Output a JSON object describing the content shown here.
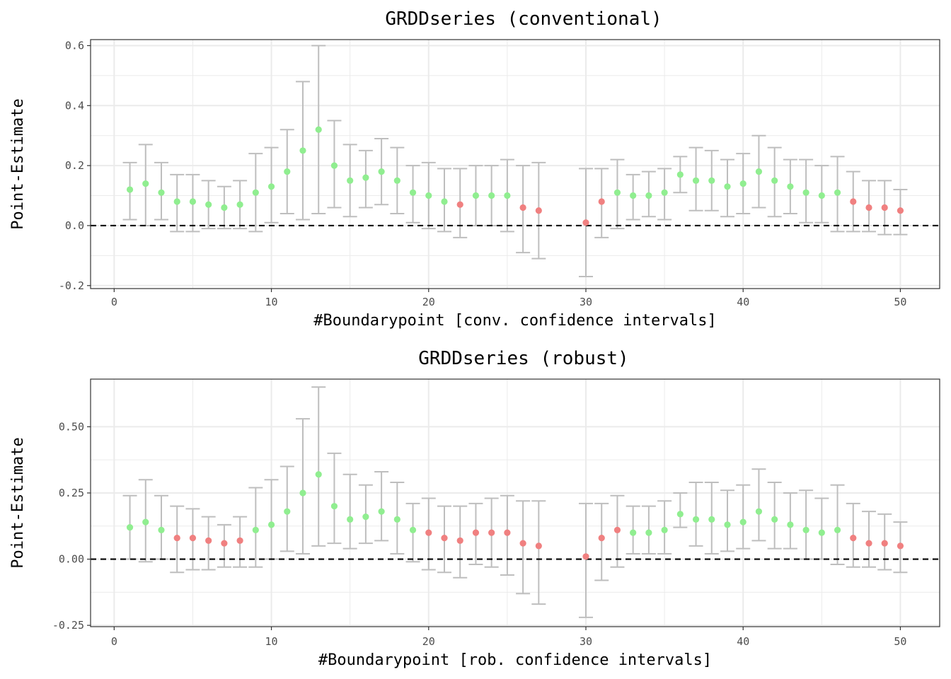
{
  "colors": {
    "significant": "#90EE90",
    "not_significant": "#F08080",
    "errorbar": "#BEBEBE",
    "zero_line": "#000000",
    "grid": "#EBEBEB",
    "panel_border": "#333333"
  },
  "chart_data": [
    {
      "type": "scatter",
      "title": "GRDDseries (conventional)",
      "xlabel": "#Boundarypoint [conv. confidence intervals]",
      "ylabel": "Point-Estimate",
      "xlim": [
        -1.5,
        52.5
      ],
      "ylim": [
        -0.21,
        0.62
      ],
      "x_ticks": [
        0,
        10,
        20,
        30,
        40,
        50
      ],
      "x_tick_labels": [
        "0",
        "10",
        "20",
        "30",
        "40",
        "50"
      ],
      "y_ticks": [
        -0.2,
        0.0,
        0.2,
        0.4,
        0.6
      ],
      "y_tick_labels": [
        "-0.2",
        "0.0",
        "0.2",
        "0.4",
        "0.6"
      ],
      "reference_line": 0,
      "grid": true,
      "series": [
        {
          "x": [
            1,
            2,
            3,
            4,
            5,
            6,
            7,
            8,
            9,
            10,
            11,
            12,
            13,
            14,
            15,
            16,
            17,
            18,
            19,
            20,
            21,
            22,
            23,
            24,
            25,
            26,
            27,
            30,
            31,
            32,
            33,
            34,
            35,
            36,
            37,
            38,
            39,
            40,
            41,
            42,
            43,
            44,
            45,
            46,
            47,
            48,
            49,
            50
          ],
          "y": [
            0.12,
            0.14,
            0.11,
            0.08,
            0.08,
            0.07,
            0.06,
            0.07,
            0.11,
            0.13,
            0.18,
            0.25,
            0.32,
            0.2,
            0.15,
            0.16,
            0.18,
            0.15,
            0.11,
            0.1,
            0.08,
            0.07,
            0.1,
            0.1,
            0.1,
            0.06,
            0.05,
            0.01,
            0.08,
            0.11,
            0.1,
            0.1,
            0.11,
            0.17,
            0.15,
            0.15,
            0.13,
            0.14,
            0.18,
            0.15,
            0.13,
            0.11,
            0.1,
            0.11,
            0.08,
            0.06,
            0.06,
            0.05
          ],
          "lower": [
            0.02,
            0.0,
            0.02,
            -0.02,
            -0.02,
            -0.01,
            -0.01,
            -0.01,
            -0.02,
            0.01,
            0.04,
            0.02,
            0.04,
            0.06,
            0.03,
            0.06,
            0.07,
            0.04,
            0.01,
            -0.01,
            -0.02,
            -0.04,
            0.0,
            0.0,
            -0.02,
            -0.09,
            -0.11,
            -0.17,
            -0.04,
            -0.01,
            0.02,
            0.03,
            0.02,
            0.11,
            0.05,
            0.05,
            0.03,
            0.04,
            0.06,
            0.03,
            0.04,
            0.01,
            0.01,
            -0.02,
            -0.02,
            -0.02,
            -0.03,
            -0.03
          ],
          "upper": [
            0.21,
            0.27,
            0.21,
            0.17,
            0.17,
            0.15,
            0.13,
            0.15,
            0.24,
            0.26,
            0.32,
            0.48,
            0.6,
            0.35,
            0.27,
            0.25,
            0.29,
            0.26,
            0.2,
            0.21,
            0.19,
            0.19,
            0.2,
            0.2,
            0.22,
            0.2,
            0.21,
            0.19,
            0.19,
            0.22,
            0.17,
            0.18,
            0.19,
            0.23,
            0.26,
            0.25,
            0.22,
            0.24,
            0.3,
            0.26,
            0.22,
            0.22,
            0.2,
            0.23,
            0.18,
            0.15,
            0.15,
            0.12
          ],
          "significant": [
            true,
            true,
            true,
            true,
            true,
            true,
            true,
            true,
            true,
            true,
            true,
            true,
            true,
            true,
            true,
            true,
            true,
            true,
            true,
            true,
            true,
            false,
            true,
            true,
            true,
            false,
            false,
            false,
            false,
            true,
            true,
            true,
            true,
            true,
            true,
            true,
            true,
            true,
            true,
            true,
            true,
            true,
            true,
            true,
            false,
            false,
            false,
            false
          ]
        }
      ]
    },
    {
      "type": "scatter",
      "title": "GRDDseries (robust)",
      "xlabel": "#Boundarypoint [rob. confidence intervals]",
      "ylabel": "Point-Estimate",
      "xlim": [
        -1.5,
        52.5
      ],
      "ylim": [
        -0.255,
        0.68
      ],
      "x_ticks": [
        0,
        10,
        20,
        30,
        40,
        50
      ],
      "x_tick_labels": [
        "0",
        "10",
        "20",
        "30",
        "40",
        "50"
      ],
      "y_ticks": [
        -0.25,
        0.0,
        0.25,
        0.5
      ],
      "y_tick_labels": [
        "-0.25",
        "0.00",
        "0.25",
        "0.50"
      ],
      "reference_line": 0,
      "grid": true,
      "series": [
        {
          "x": [
            1,
            2,
            3,
            4,
            5,
            6,
            7,
            8,
            9,
            10,
            11,
            12,
            13,
            14,
            15,
            16,
            17,
            18,
            19,
            20,
            21,
            22,
            23,
            24,
            25,
            26,
            27,
            30,
            31,
            32,
            33,
            34,
            35,
            36,
            37,
            38,
            39,
            40,
            41,
            42,
            43,
            44,
            45,
            46,
            47,
            48,
            49,
            50
          ],
          "y": [
            0.12,
            0.14,
            0.11,
            0.08,
            0.08,
            0.07,
            0.06,
            0.07,
            0.11,
            0.13,
            0.18,
            0.25,
            0.32,
            0.2,
            0.15,
            0.16,
            0.18,
            0.15,
            0.11,
            0.1,
            0.08,
            0.07,
            0.1,
            0.1,
            0.1,
            0.06,
            0.05,
            0.01,
            0.08,
            0.11,
            0.1,
            0.1,
            0.11,
            0.17,
            0.15,
            0.15,
            0.13,
            0.14,
            0.18,
            0.15,
            0.13,
            0.11,
            0.1,
            0.11,
            0.08,
            0.06,
            0.06,
            0.05
          ],
          "lower": [
            0.0,
            -0.01,
            0.0,
            -0.05,
            -0.04,
            -0.04,
            -0.03,
            -0.03,
            -0.03,
            0.0,
            0.03,
            0.02,
            0.05,
            0.06,
            0.04,
            0.06,
            0.07,
            0.02,
            -0.01,
            -0.04,
            -0.05,
            -0.07,
            -0.02,
            -0.03,
            -0.06,
            -0.13,
            -0.17,
            -0.22,
            -0.08,
            -0.03,
            0.02,
            0.02,
            0.02,
            0.12,
            0.05,
            0.02,
            0.03,
            0.04,
            0.07,
            0.04,
            0.04,
            0.0,
            0.0,
            -0.02,
            -0.03,
            -0.03,
            -0.04,
            -0.05
          ],
          "upper": [
            0.24,
            0.3,
            0.24,
            0.2,
            0.19,
            0.16,
            0.13,
            0.16,
            0.27,
            0.3,
            0.35,
            0.53,
            0.65,
            0.4,
            0.32,
            0.28,
            0.33,
            0.29,
            0.21,
            0.23,
            0.2,
            0.2,
            0.21,
            0.23,
            0.24,
            0.22,
            0.22,
            0.21,
            0.21,
            0.24,
            0.2,
            0.2,
            0.22,
            0.25,
            0.29,
            0.29,
            0.26,
            0.28,
            0.34,
            0.29,
            0.25,
            0.26,
            0.23,
            0.28,
            0.21,
            0.18,
            0.17,
            0.14
          ],
          "significant": [
            true,
            true,
            true,
            false,
            false,
            false,
            false,
            false,
            true,
            true,
            true,
            true,
            true,
            true,
            true,
            true,
            true,
            true,
            true,
            false,
            false,
            false,
            false,
            false,
            false,
            false,
            false,
            false,
            false,
            false,
            true,
            true,
            true,
            true,
            true,
            true,
            true,
            true,
            true,
            true,
            true,
            true,
            true,
            true,
            false,
            false,
            false,
            false
          ]
        }
      ]
    }
  ]
}
